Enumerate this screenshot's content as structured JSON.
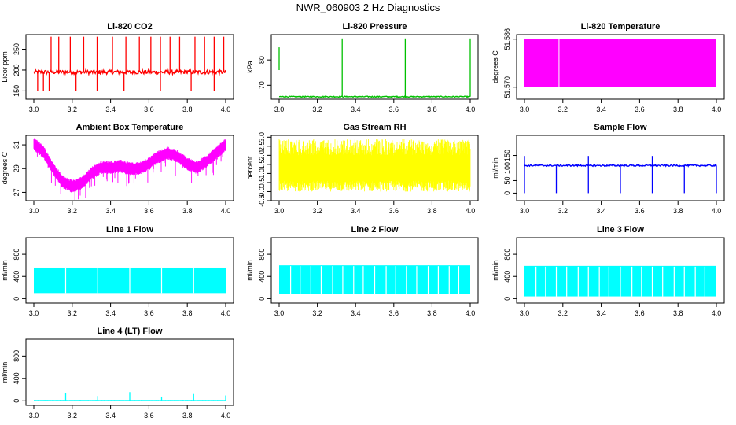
{
  "page": {
    "title": "NWR_060903 2 Hz Diagnostics"
  },
  "chart_data": [
    {
      "id": "co2",
      "type": "line",
      "title": "Li-820 CO2",
      "ylabel": "Licor ppm",
      "color": "#ff0000",
      "xlim": [
        3.0,
        4.0
      ],
      "ylim": [
        130,
        285
      ],
      "yticks": [
        150,
        200,
        250
      ],
      "xticks": [
        3.0,
        3.2,
        3.4,
        3.6,
        3.8,
        4.0
      ],
      "series": [
        {
          "pattern": "baseline_spikes",
          "base": 195,
          "noise": 5,
          "spike_to": 280,
          "spikes": [
            3.09,
            3.13,
            3.19,
            3.26,
            3.33,
            3.41,
            3.48,
            3.55,
            3.61,
            3.66,
            3.71,
            3.76,
            3.84,
            3.89,
            3.94,
            3.99
          ],
          "dips": [
            3.02,
            3.05,
            3.08,
            3.22,
            3.33,
            3.47,
            3.66,
            3.82,
            3.94
          ],
          "dip_to": 150
        }
      ]
    },
    {
      "id": "pressure",
      "type": "line",
      "title": "Li-820 Pressure",
      "ylabel": "kPa",
      "color": "#00c000",
      "xlim": [
        3.0,
        4.0
      ],
      "ylim": [
        64.5,
        90
      ],
      "yticks": [
        70,
        80
      ],
      "xticks": [
        3.0,
        3.2,
        3.4,
        3.6,
        3.8,
        4.0
      ],
      "series": [
        {
          "pattern": "baseline_spikes",
          "base": 65.5,
          "noise": 0.2,
          "spike_to": 88.5,
          "spikes": [
            3.33,
            3.66,
            4.0
          ],
          "start_segment": [
            3.0,
            76,
            85
          ]
        }
      ]
    },
    {
      "id": "temperature",
      "type": "area",
      "title": "Li-820 Temperature",
      "ylabel": "degrees C",
      "color": "#ff00ff",
      "xlim": [
        3.0,
        4.0
      ],
      "ylim": [
        51.566,
        51.5875
      ],
      "yticks": [
        51.57,
        51.586
      ],
      "ytick_labels": [
        "51.570",
        "51.586"
      ],
      "xticks": [
        3.0,
        3.2,
        3.4,
        3.6,
        3.8,
        4.0
      ],
      "series": [
        {
          "pattern": "fill",
          "from": 51.57,
          "to": 51.586,
          "gap_at": 3.18
        }
      ]
    },
    {
      "id": "ambient",
      "type": "line",
      "title": "Ambient Box Temperature",
      "ylabel": "degrees C",
      "color": "#ff00ff",
      "xlim": [
        3.0,
        4.0
      ],
      "ylim": [
        26.3,
        31.8
      ],
      "yticks": [
        27,
        29,
        31
      ],
      "xticks": [
        3.0,
        3.2,
        3.4,
        3.6,
        3.8,
        4.0
      ],
      "series": [
        {
          "pattern": "curve_band",
          "points": [
            [
              3.0,
              31.1
            ],
            [
              3.05,
              30.4
            ],
            [
              3.1,
              29.0
            ],
            [
              3.15,
              27.9
            ],
            [
              3.2,
              27.5
            ],
            [
              3.25,
              27.8
            ],
            [
              3.3,
              28.6
            ],
            [
              3.35,
              29.1
            ],
            [
              3.4,
              29.1
            ],
            [
              3.45,
              29.2
            ],
            [
              3.5,
              29.0
            ],
            [
              3.55,
              29.0
            ],
            [
              3.6,
              29.4
            ],
            [
              3.65,
              30.0
            ],
            [
              3.7,
              30.3
            ],
            [
              3.75,
              30.0
            ],
            [
              3.8,
              29.4
            ],
            [
              3.85,
              29.1
            ],
            [
              3.9,
              29.6
            ],
            [
              3.95,
              30.3
            ],
            [
              4.0,
              31.0
            ]
          ],
          "band": 0.7,
          "dip": 1.2
        }
      ]
    },
    {
      "id": "rh",
      "type": "line",
      "title": "Gas Stream RH",
      "ylabel": "percent",
      "color": "#ffff00",
      "xlim": [
        3.0,
        4.0
      ],
      "ylim": [
        -0.5,
        3.1
      ],
      "yticks": [
        -0.5,
        0.0,
        0.5,
        1.0,
        1.5,
        2.0,
        2.5,
        3.0
      ],
      "ytick_labels": [
        "-0.5",
        "0.0",
        "0.5",
        "1.0",
        "1.5",
        "2.0",
        "2.5",
        "3.0"
      ],
      "xticks": [
        3.0,
        3.2,
        3.4,
        3.6,
        3.8,
        4.0
      ],
      "series": [
        {
          "pattern": "noise_band",
          "lo": 0.0,
          "hi": 2.9
        }
      ]
    },
    {
      "id": "sample",
      "type": "line",
      "title": "Sample Flow",
      "ylabel": "ml/min",
      "color": "#0000ff",
      "xlim": [
        3.0,
        4.0
      ],
      "ylim": [
        -30,
        230
      ],
      "yticks": [
        0,
        50,
        100,
        150
      ],
      "xticks": [
        3.0,
        3.2,
        3.4,
        3.6,
        3.8,
        4.0
      ],
      "series": [
        {
          "pattern": "baseline_spikes",
          "base": 110,
          "noise": 3,
          "dips": [
            3.0,
            3.166,
            3.333,
            3.5,
            3.666,
            3.833,
            4.0
          ],
          "dip_to": 0,
          "spikes": [
            3.0,
            3.333,
            3.666
          ],
          "spike_to": 148
        }
      ]
    },
    {
      "id": "line1",
      "type": "area",
      "title": "Line 1 Flow",
      "ylabel": "ml/min",
      "color": "#00ffff",
      "xlim": [
        3.0,
        4.0
      ],
      "ylim": [
        -80,
        1100
      ],
      "yticks": [
        0,
        400,
        800
      ],
      "xticks": [
        3.0,
        3.2,
        3.4,
        3.6,
        3.8,
        4.0
      ],
      "series": [
        {
          "pattern": "flow_block",
          "lo": 100,
          "hi": 560,
          "gaps": [
            3.166,
            3.333,
            3.5,
            3.666,
            3.833
          ]
        }
      ]
    },
    {
      "id": "line2",
      "type": "area",
      "title": "Line 2 Flow",
      "ylabel": "ml/min",
      "color": "#00ffff",
      "xlim": [
        3.0,
        4.0
      ],
      "ylim": [
        -80,
        1100
      ],
      "yticks": [
        0,
        400,
        800
      ],
      "xticks": [
        3.0,
        3.2,
        3.4,
        3.6,
        3.8,
        4.0
      ],
      "series": [
        {
          "pattern": "flow_block",
          "lo": 90,
          "hi": 600,
          "gaps": [
            3.06,
            3.11,
            3.166,
            3.22,
            3.28,
            3.333,
            3.39,
            3.44,
            3.5,
            3.56,
            3.61,
            3.666,
            3.72,
            3.78,
            3.833,
            3.89,
            3.94
          ]
        }
      ]
    },
    {
      "id": "line3",
      "type": "area",
      "title": "Line 3 Flow",
      "ylabel": "ml/min",
      "color": "#00ffff",
      "xlim": [
        3.0,
        4.0
      ],
      "ylim": [
        -80,
        1100
      ],
      "yticks": [
        0,
        400,
        800
      ],
      "xticks": [
        3.0,
        3.2,
        3.4,
        3.6,
        3.8,
        4.0
      ],
      "series": [
        {
          "pattern": "flow_block",
          "lo": 40,
          "hi": 590,
          "gaps": [
            3.06,
            3.11,
            3.166,
            3.22,
            3.28,
            3.333,
            3.39,
            3.44,
            3.5,
            3.56,
            3.61,
            3.666,
            3.72,
            3.78,
            3.833,
            3.89,
            3.94
          ]
        }
      ]
    },
    {
      "id": "line4",
      "type": "line",
      "title": "Line 4 (LT) Flow",
      "ylabel": "ml/min",
      "color": "#00ffff",
      "xlim": [
        3.0,
        4.0
      ],
      "ylim": [
        -80,
        1100
      ],
      "yticks": [
        0,
        400,
        800
      ],
      "xticks": [
        3.0,
        3.2,
        3.4,
        3.6,
        3.8,
        4.0
      ],
      "series": [
        {
          "pattern": "baseline_spikes",
          "base": 5,
          "noise": 2,
          "spikes": [
            3.166,
            3.333,
            3.5,
            3.666,
            3.833,
            4.0
          ],
          "spike_heights": [
            140,
            80,
            150,
            70,
            130,
            90
          ]
        }
      ]
    }
  ]
}
